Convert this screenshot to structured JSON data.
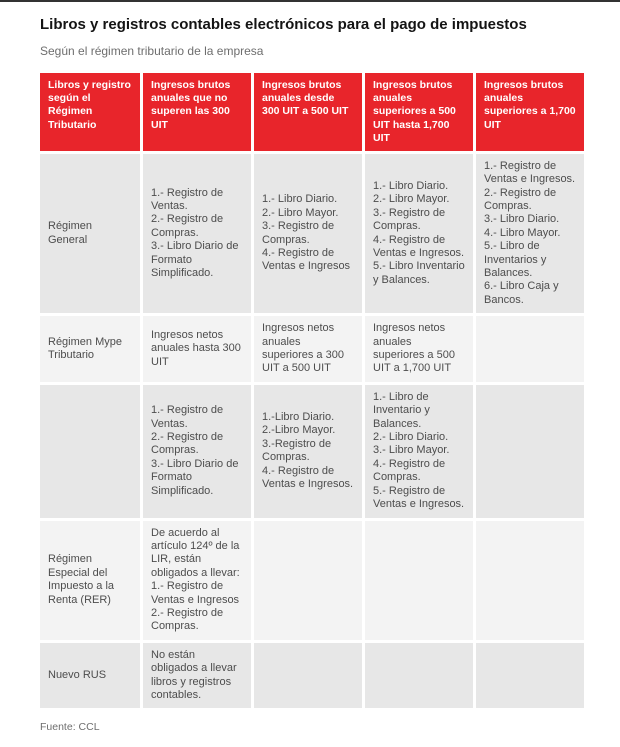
{
  "colors": {
    "accent_red": "#e8252b",
    "top_bar": "#333333",
    "row_dark": "#e7e7e7",
    "row_light": "#f3f3f3",
    "header_text": "#ffffff",
    "body_text": "#4d4d4d"
  },
  "page": {
    "title": "Libros y registros contables electrónicos para el pago de impuestos",
    "subtitle": "Según el régimen tributario de la empresa",
    "source": "Fuente: CCL"
  },
  "table": {
    "headers": [
      "Libros y registro según el Régimen Tributario",
      "Ingresos brutos anuales que no superen las 300 UIT",
      "Ingresos brutos anuales desde 300 UIT a 500 UIT",
      "Ingresos brutos anuales superiores a 500 UIT hasta 1,700 UIT",
      "Ingresos brutos anuales superiores a 1,700 UIT"
    ],
    "rows": [
      {
        "cells": [
          "Régimen General",
          "1.- Registro de Ventas.\n2.- Registro de Compras.\n3.- Libro Diario de Formato Simplificado.",
          "1.- Libro Diario.\n2.- Libro Mayor.\n3.- Registro de Compras.\n4.- Registro de Ventas e Ingresos",
          "1.- Libro Diario.\n2.- Libro Mayor.\n3.- Registro de Compras.\n4.- Registro de Ventas e Ingresos.\n5.- Libro Inventario y Balances.",
          "1.- Registro de Ventas e Ingresos.\n2.- Registro de Compras.\n3.- Libro Diario.\n4.- Libro Mayor.\n5.- Libro de Inventarios y Balances.\n6.- Libro Caja y Bancos."
        ]
      },
      {
        "cells": [
          "Régimen Mype Tributario",
          "Ingresos netos anuales hasta 300 UIT",
          "Ingresos netos anuales superiores a 300 UIT a 500 UIT",
          "Ingresos netos anuales superiores a 500 UIT a 1,700 UIT",
          ""
        ]
      },
      {
        "cells": [
          "",
          "1.- Registro de Ventas.\n2.- Registro de Compras.\n3.- Libro Diario de Formato Simplificado.",
          "1.-Libro Diario.\n2.-Libro Mayor.\n3.-Registro de Compras.\n4.- Registro de Ventas e Ingresos.",
          "1.- Libro de Inventario y Balances.\n2.- Libro Diario.\n3.- Libro Mayor.\n4.- Registro de Compras.\n5.- Registro de Ventas e Ingresos.",
          ""
        ]
      },
      {
        "cells": [
          "Régimen Especial del Impuesto a la Renta (RER)",
          "De acuerdo al artículo 124º de la LIR, están obligados a llevar:\n1.- Registro de Ventas e Ingresos\n2.- Registro de Compras.",
          "",
          "",
          ""
        ]
      },
      {
        "cells": [
          "Nuevo RUS",
          "No están obligados a llevar libros y registros contables.",
          "",
          "",
          ""
        ]
      }
    ]
  }
}
